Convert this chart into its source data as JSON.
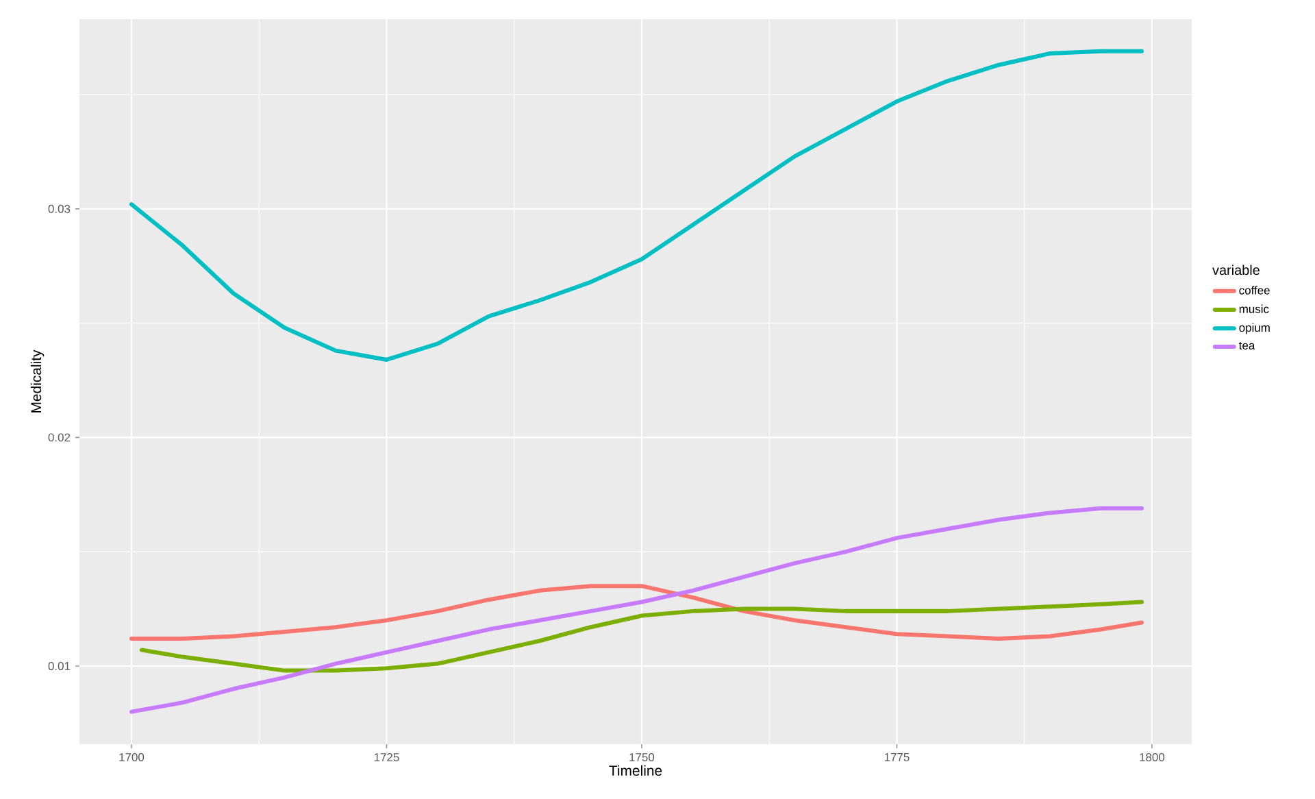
{
  "chart_data": {
    "type": "line",
    "xlabel": "Timeline",
    "ylabel": "Medicality",
    "legend_title": "variable",
    "x": [
      1700,
      1705,
      1710,
      1715,
      1720,
      1725,
      1730,
      1735,
      1740,
      1745,
      1750,
      1755,
      1760,
      1765,
      1770,
      1775,
      1780,
      1785,
      1790,
      1795,
      1799
    ],
    "series": [
      {
        "name": "coffee",
        "color": "#f8766d",
        "values": [
          0.0112,
          0.0112,
          0.0113,
          0.0115,
          0.0117,
          0.012,
          0.0124,
          0.0129,
          0.0133,
          0.0135,
          0.0135,
          0.013,
          0.0124,
          0.012,
          0.0117,
          0.0114,
          0.0113,
          0.0112,
          0.0113,
          0.0116,
          0.0119
        ]
      },
      {
        "name": "music",
        "color": "#7cae00",
        "x": [
          1701,
          1705,
          1710,
          1715,
          1720,
          1725,
          1730,
          1735,
          1740,
          1745,
          1750,
          1755,
          1760,
          1765,
          1770,
          1775,
          1780,
          1785,
          1790,
          1795,
          1799
        ],
        "values": [
          0.0107,
          0.0104,
          0.0101,
          0.0098,
          0.0098,
          0.0099,
          0.0101,
          0.0106,
          0.0111,
          0.0117,
          0.0122,
          0.0124,
          0.0125,
          0.0125,
          0.0124,
          0.0124,
          0.0124,
          0.0125,
          0.0126,
          0.0127,
          0.0128
        ]
      },
      {
        "name": "opium",
        "color": "#00bfc4",
        "values": [
          0.0302,
          0.0284,
          0.0263,
          0.0248,
          0.0238,
          0.0234,
          0.0241,
          0.0253,
          0.026,
          0.0268,
          0.0278,
          0.0293,
          0.0308,
          0.0323,
          0.0335,
          0.0347,
          0.0356,
          0.0363,
          0.0368,
          0.0369,
          0.0369
        ]
      },
      {
        "name": "tea",
        "color": "#c77cff",
        "values": [
          0.008,
          0.0084,
          0.009,
          0.0095,
          0.0101,
          0.0106,
          0.0111,
          0.0116,
          0.012,
          0.0124,
          0.0128,
          0.0133,
          0.0139,
          0.0145,
          0.015,
          0.0156,
          0.016,
          0.0164,
          0.0167,
          0.0169,
          0.0169
        ]
      }
    ],
    "xlim": [
      1694.9,
      1803.9
    ],
    "ylim": [
      0.00658,
      0.0383
    ],
    "xticks": [
      1700,
      {
        "value": 1712.5,
        "label": null
      },
      1725,
      {
        "value": 1737.5,
        "label": null
      },
      1750,
      {
        "value": 1762.5,
        "label": null
      },
      1775,
      {
        "value": 1787.5,
        "label": null
      },
      1800
    ],
    "yticks": [
      0.01,
      {
        "value": 0.015,
        "label": null
      },
      0.02,
      {
        "value": 0.025,
        "label": null
      },
      0.03,
      {
        "value": 0.035,
        "label": null
      }
    ],
    "grid": true,
    "legend": "right",
    "marker": "none",
    "line_style": "solid"
  }
}
